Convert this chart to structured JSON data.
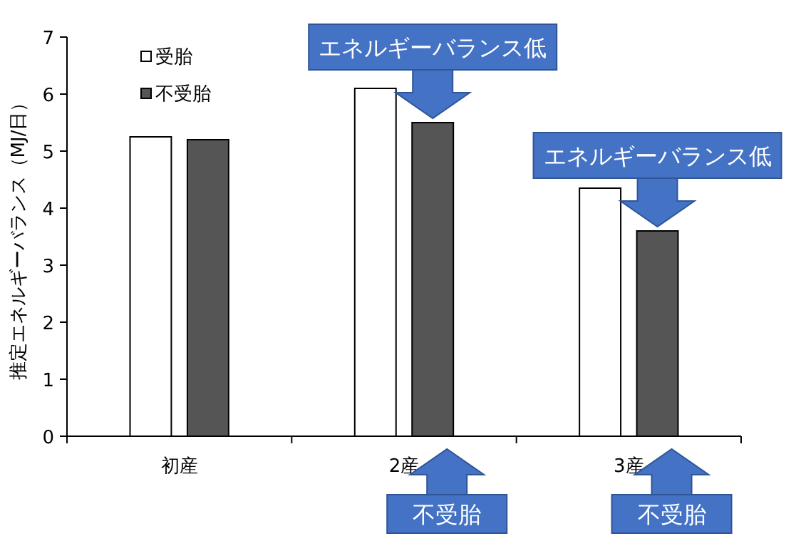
{
  "chart_data": {
    "type": "bar",
    "ylabel": "推定エネルギーバランス（MJ/日）",
    "categories": [
      "初産",
      "2産",
      "3産"
    ],
    "series": [
      {
        "name": "受胎",
        "color": "#ffffff",
        "values": [
          5.25,
          6.1,
          4.35
        ]
      },
      {
        "name": "不受胎",
        "color": "#555555",
        "values": [
          5.2,
          5.5,
          3.6
        ]
      }
    ],
    "ylim": [
      0,
      7
    ],
    "yticks": [
      0,
      1,
      2,
      3,
      4,
      5,
      6,
      7
    ],
    "legend": "top left",
    "annotations": [
      "エネルギーバランス低",
      "エネルギーバランス低",
      "不受胎",
      "不受胎"
    ]
  }
}
